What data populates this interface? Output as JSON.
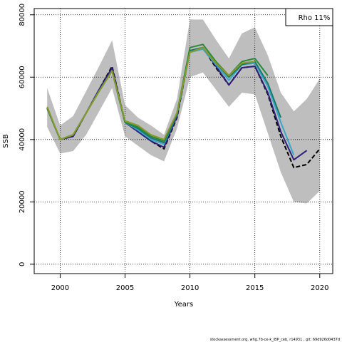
{
  "chart_data": {
    "type": "line",
    "title": "",
    "xlabel": "Years",
    "ylabel": "SSB",
    "xlim": [
      1998,
      2021
    ],
    "ylim": [
      -3000,
      82000
    ],
    "xticks": [
      2000,
      2005,
      2010,
      2015,
      2020
    ],
    "yticks": [
      0,
      20000,
      40000,
      60000,
      80000
    ],
    "xtick_labels": [
      "2000",
      "2005",
      "2010",
      "2015",
      "2020"
    ],
    "ytick_labels": [
      "0",
      "20000",
      "40000",
      "60000",
      "80000"
    ],
    "grid": true,
    "legend": {
      "text": "Rho 11%",
      "placement": "top-right"
    },
    "footer": "stockassessment.org, whg.7b-ce-k_IBP_ceb, r14931 , git: 69d926d0437d",
    "confidence_band": {
      "color": "#bebebe",
      "x": [
        1999,
        2000,
        2001,
        2002,
        2003,
        2004,
        2005,
        2006,
        2007,
        2008,
        2009,
        2010,
        2011,
        2012,
        2013,
        2014,
        2015,
        2016,
        2017,
        2018,
        2019,
        2020
      ],
      "upper": [
        56500,
        44500,
        47500,
        55500,
        63500,
        71800,
        51000,
        47000,
        44500,
        41500,
        53000,
        78500,
        78500,
        72000,
        66000,
        74000,
        76000,
        67000,
        55000,
        49000,
        53000,
        59500
      ],
      "lower": [
        44000,
        35500,
        36300,
        41500,
        49000,
        56500,
        41000,
        38000,
        35000,
        33000,
        43500,
        60000,
        61500,
        56000,
        50500,
        55000,
        54500,
        42000,
        29500,
        20000,
        19500,
        23500
      ]
    },
    "series": [
      {
        "color": "#000000",
        "dashed": true,
        "x": [
          1999,
          2000,
          2001,
          2002,
          2003,
          2004,
          2005,
          2006,
          2007,
          2008,
          2009,
          2010,
          2011,
          2012,
          2013,
          2014,
          2015,
          2016,
          2017,
          2018,
          2019,
          2020
        ],
        "values": [
          50000,
          40000,
          41000,
          48500,
          56000,
          63500,
          45500,
          42500,
          39500,
          37000,
          47000,
          68500,
          69500,
          63000,
          57500,
          63000,
          63500,
          54500,
          41000,
          31000,
          32000,
          37000
        ]
      },
      {
        "color": "#2d1e7a",
        "dashed": false,
        "x": [
          1999,
          2000,
          2001,
          2002,
          2003,
          2004,
          2005,
          2006,
          2007,
          2008,
          2009,
          2010,
          2011,
          2012,
          2013,
          2014,
          2015,
          2016,
          2017,
          2018,
          2019
        ],
        "values": [
          50000,
          40000,
          41000,
          48500,
          56000,
          63000,
          45500,
          42500,
          39500,
          37500,
          47500,
          68500,
          69500,
          63500,
          57500,
          63000,
          63500,
          55000,
          42500,
          33500,
          36500
        ]
      },
      {
        "color": "#3aa6c8",
        "dashed": false,
        "x": [
          1999,
          2000,
          2001,
          2002,
          2003,
          2004,
          2005,
          2006,
          2007,
          2008,
          2009,
          2010,
          2011,
          2012,
          2013,
          2014,
          2015,
          2016,
          2017,
          2018
        ],
        "values": [
          50000,
          40000,
          41500,
          48500,
          55500,
          62000,
          45500,
          43000,
          40000,
          38500,
          48000,
          68000,
          69000,
          64000,
          59000,
          64000,
          64500,
          57000,
          45500,
          35000
        ]
      },
      {
        "color": "#1a7a6a",
        "dashed": false,
        "x": [
          1999,
          2000,
          2001,
          2002,
          2003,
          2004,
          2005,
          2006,
          2007,
          2008,
          2009,
          2010,
          2011,
          2012,
          2013,
          2014,
          2015,
          2016,
          2017
        ],
        "values": [
          50000,
          40000,
          41500,
          48500,
          55500,
          62000,
          45500,
          43500,
          40500,
          39000,
          48000,
          68500,
          69500,
          64500,
          60000,
          64000,
          65000,
          58000,
          47000
        ]
      },
      {
        "color": "#2a8a3a",
        "dashed": false,
        "x": [
          1999,
          2000,
          2001,
          2002,
          2003,
          2004,
          2005,
          2006,
          2007,
          2008,
          2009,
          2010,
          2011,
          2012,
          2013,
          2014,
          2015,
          2016
        ],
        "values": [
          50000,
          40000,
          41500,
          48500,
          55500,
          62000,
          45500,
          44000,
          41000,
          39500,
          48500,
          69500,
          70500,
          65000,
          60500,
          65000,
          66000,
          60500
        ]
      },
      {
        "color": "#8a9a2a",
        "dashed": false,
        "x": [
          1999,
          2000,
          2001,
          2002,
          2003,
          2004,
          2005,
          2006,
          2007,
          2008,
          2009,
          2010,
          2011,
          2012,
          2013,
          2014,
          2015
        ],
        "values": [
          50500,
          40000,
          41500,
          48500,
          55500,
          62000,
          46000,
          44500,
          41500,
          40000,
          48500,
          68000,
          69500,
          64500,
          60500,
          64500,
          65000
        ]
      }
    ]
  }
}
